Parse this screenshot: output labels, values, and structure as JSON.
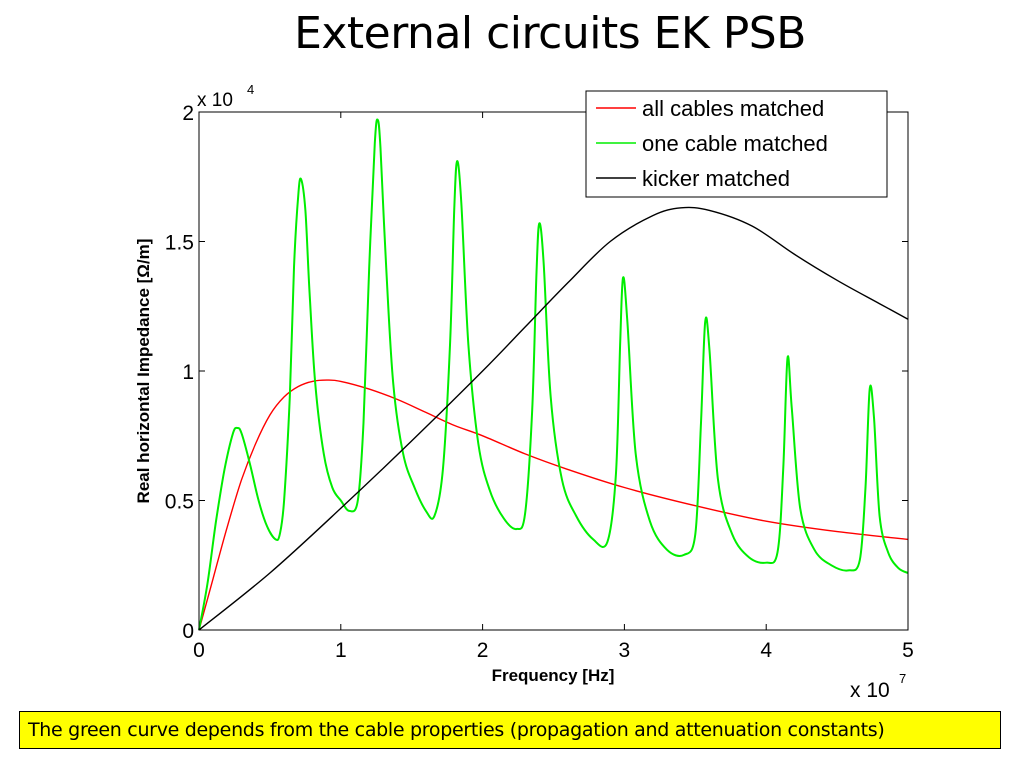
{
  "slide": {
    "title": "External circuits EK PSB",
    "note": "The green curve depends from the cable properties (propagation and attenuation constants)"
  },
  "chart_data": {
    "type": "line",
    "xlabel": "Frequency [Hz]",
    "ylabel": "Real horizontal Impedance [Ω/m]",
    "x_exponent_label": "x 10",
    "x_exponent_power": "7",
    "y_exponent_label": "x 10",
    "y_exponent_power": "4",
    "x_scale": 10000000,
    "y_scale": 10000,
    "xlim": [
      0,
      5
    ],
    "ylim": [
      0,
      2
    ],
    "x_ticks": [
      0,
      1,
      2,
      3,
      4,
      5
    ],
    "x_tick_labels": [
      "0",
      "1",
      "2",
      "3",
      "4",
      "5"
    ],
    "y_ticks": [
      0,
      0.5,
      1,
      1.5,
      2
    ],
    "y_tick_labels": [
      "0",
      "0.5",
      "1",
      "1.5",
      "2"
    ],
    "grid": false,
    "legend_position": "top-right",
    "series": [
      {
        "name": "all cables matched",
        "color": "#ff0000",
        "x": [
          0,
          0.1,
          0.2,
          0.3,
          0.4,
          0.5,
          0.6,
          0.7,
          0.8,
          0.9,
          1.0,
          1.2,
          1.4,
          1.6,
          1.8,
          2.0,
          2.3,
          2.6,
          3.0,
          3.5,
          4.0,
          4.5,
          5.0
        ],
        "y": [
          0,
          0.2,
          0.4,
          0.58,
          0.72,
          0.83,
          0.9,
          0.94,
          0.96,
          0.965,
          0.96,
          0.93,
          0.89,
          0.84,
          0.79,
          0.75,
          0.68,
          0.62,
          0.55,
          0.48,
          0.42,
          0.38,
          0.35
        ]
      },
      {
        "name": "one cable matched",
        "color": "#00ee00",
        "x": [
          0,
          0.06,
          0.12,
          0.18,
          0.24,
          0.27,
          0.3,
          0.36,
          0.42,
          0.48,
          0.54,
          0.57,
          0.6,
          0.64,
          0.67,
          0.7,
          0.72,
          0.75,
          0.78,
          0.82,
          0.88,
          0.94,
          1.0,
          1.06,
          1.12,
          1.16,
          1.2,
          1.24,
          1.26,
          1.28,
          1.32,
          1.37,
          1.44,
          1.52,
          1.6,
          1.66,
          1.72,
          1.77,
          1.8,
          1.82,
          1.85,
          1.9,
          1.97,
          2.05,
          2.15,
          2.24,
          2.3,
          2.35,
          2.38,
          2.4,
          2.43,
          2.48,
          2.56,
          2.66,
          2.78,
          2.88,
          2.94,
          2.97,
          2.99,
          3.02,
          3.08,
          3.18,
          3.3,
          3.42,
          3.5,
          3.54,
          3.57,
          3.6,
          3.66,
          3.76,
          3.88,
          4.0,
          4.08,
          4.12,
          4.15,
          4.18,
          4.24,
          4.34,
          4.46,
          4.58,
          4.66,
          4.7,
          4.73,
          4.76,
          4.8,
          4.86,
          4.93,
          5.0
        ],
        "y": [
          0,
          0.18,
          0.42,
          0.62,
          0.76,
          0.78,
          0.76,
          0.64,
          0.5,
          0.4,
          0.35,
          0.37,
          0.5,
          0.9,
          1.4,
          1.68,
          1.74,
          1.62,
          1.3,
          0.95,
          0.68,
          0.55,
          0.5,
          0.46,
          0.5,
          0.8,
          1.4,
          1.88,
          1.97,
          1.86,
          1.4,
          0.95,
          0.68,
          0.55,
          0.46,
          0.44,
          0.62,
          1.1,
          1.62,
          1.81,
          1.65,
          1.1,
          0.72,
          0.54,
          0.43,
          0.39,
          0.45,
          0.85,
          1.38,
          1.57,
          1.42,
          0.9,
          0.58,
          0.44,
          0.35,
          0.34,
          0.6,
          1.1,
          1.36,
          1.2,
          0.68,
          0.42,
          0.31,
          0.29,
          0.37,
          0.8,
          1.19,
          1.08,
          0.58,
          0.37,
          0.28,
          0.26,
          0.3,
          0.62,
          1.05,
          0.86,
          0.47,
          0.31,
          0.25,
          0.23,
          0.27,
          0.55,
          0.93,
          0.82,
          0.44,
          0.3,
          0.24,
          0.22
        ]
      },
      {
        "name": "kicker matched",
        "color": "#000000",
        "x": [
          0,
          0.5,
          1.0,
          1.5,
          2.0,
          2.3,
          2.6,
          2.9,
          3.2,
          3.4,
          3.6,
          3.9,
          4.2,
          4.5,
          4.8,
          5.0
        ],
        "y": [
          0,
          0.22,
          0.47,
          0.73,
          1.0,
          1.17,
          1.34,
          1.5,
          1.6,
          1.63,
          1.62,
          1.56,
          1.45,
          1.35,
          1.26,
          1.2
        ]
      }
    ]
  }
}
